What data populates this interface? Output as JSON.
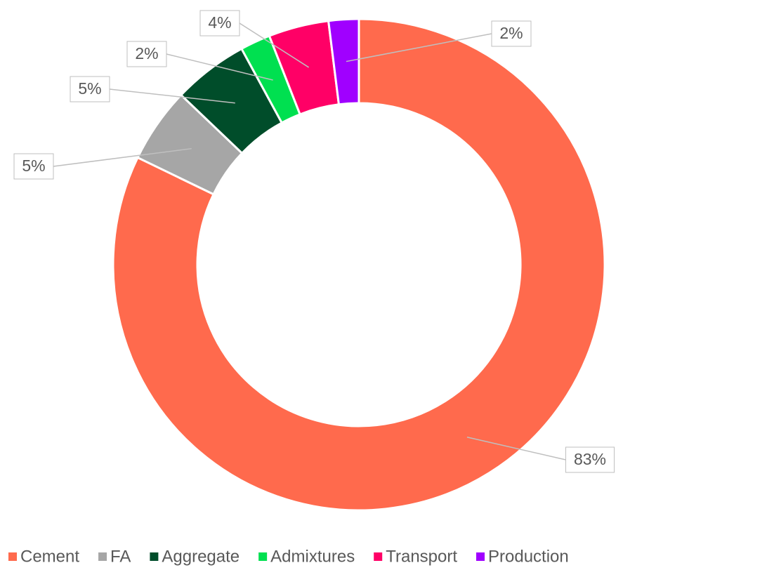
{
  "chart_data": {
    "type": "donut",
    "categories": [
      "Cement",
      "FA",
      "Aggregate",
      "Admixtures",
      "Transport",
      "Production"
    ],
    "values": [
      83,
      5,
      5,
      2,
      4,
      2
    ],
    "value_labels": [
      "83%",
      "5%",
      "5%",
      "2%",
      "4%",
      "2%"
    ],
    "colors": [
      "#ff6a4d",
      "#a6a6a6",
      "#004d2a",
      "#00e050",
      "#ff0066",
      "#a000ff"
    ],
    "legend": "bottom"
  }
}
